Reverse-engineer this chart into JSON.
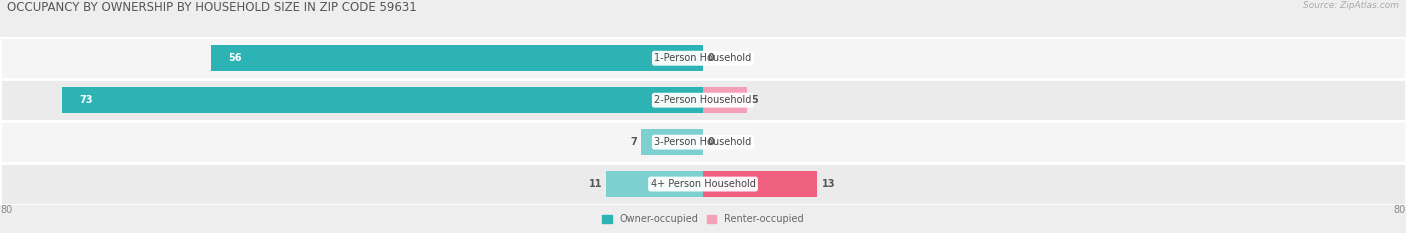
{
  "title": "OCCUPANCY BY OWNERSHIP BY HOUSEHOLD SIZE IN ZIP CODE 59631",
  "source": "Source: ZipAtlas.com",
  "categories": [
    "1-Person Household",
    "2-Person Household",
    "3-Person Household",
    "4+ Person Household"
  ],
  "owner_values": [
    56,
    73,
    7,
    11
  ],
  "renter_values": [
    0,
    5,
    0,
    13
  ],
  "owner_color_dark": "#2db3b3",
  "owner_color_light": "#7dd0d0",
  "renter_color_dark": "#f06080",
  "renter_color_light": "#f4a0b8",
  "axis_max": 80,
  "axis_min": -80,
  "background_color": "#eeeeee",
  "row_bg_even": "#f2f2f2",
  "row_bg_odd": "#e8e8e8",
  "row_separator": "#ffffff",
  "title_fontsize": 8.5,
  "value_fontsize": 7,
  "cat_fontsize": 7,
  "legend_fontsize": 7,
  "source_fontsize": 6.5,
  "axis_label_fontsize": 7
}
